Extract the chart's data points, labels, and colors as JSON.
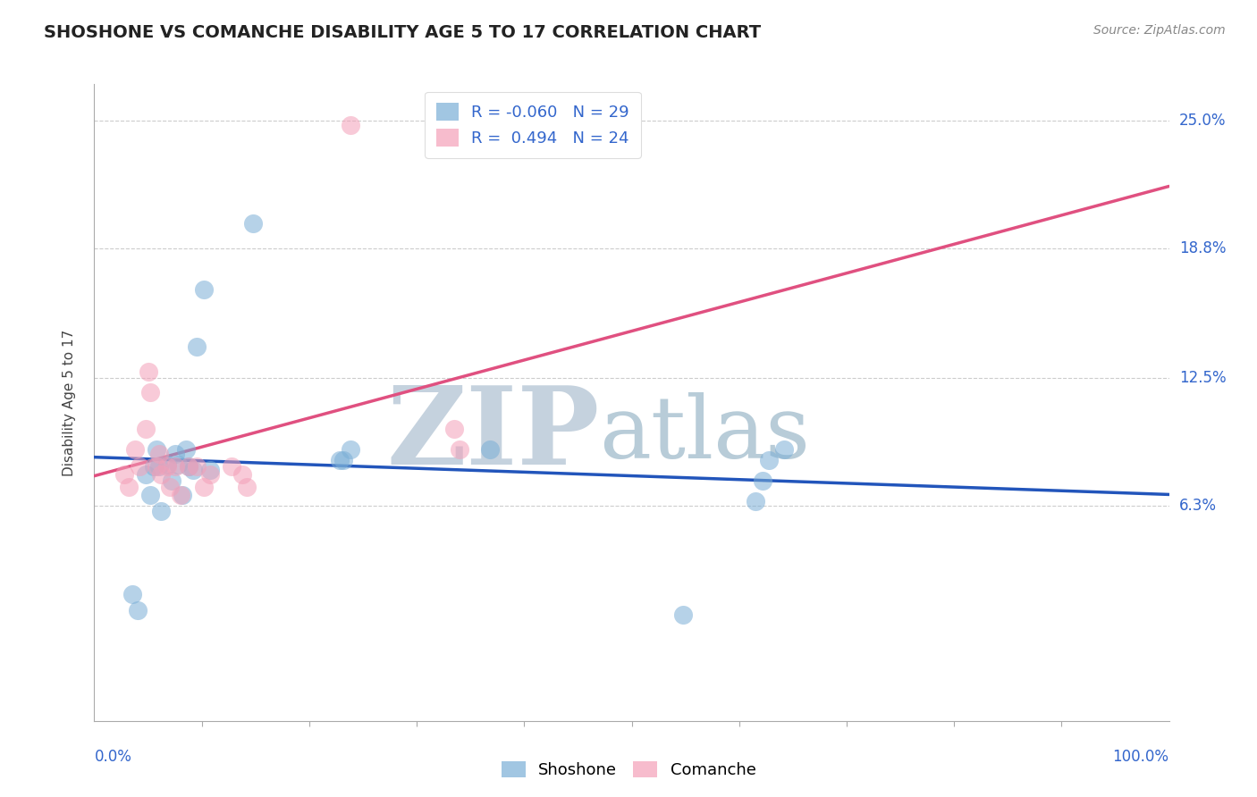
{
  "title": "SHOSHONE VS COMANCHE DISABILITY AGE 5 TO 17 CORRELATION CHART",
  "source": "Source: ZipAtlas.com",
  "ylabel": "Disability Age 5 to 17",
  "xmin": 0.0,
  "xmax": 1.0,
  "ymin": -0.042,
  "ymax": 0.268,
  "shoshone_R": -0.06,
  "shoshone_N": 29,
  "comanche_R": 0.494,
  "comanche_N": 24,
  "shoshone_color": "#7aaed6",
  "comanche_color": "#f4a0b8",
  "shoshone_line_color": "#2255bb",
  "comanche_line_color": "#e05080",
  "watermark_zip": "ZIP",
  "watermark_atlas": "atlas",
  "watermark_color_zip": "#c8d4e0",
  "watermark_color_atlas": "#b0c8dc",
  "ytick_vals": [
    0.063,
    0.125,
    0.188,
    0.25
  ],
  "ytick_labels": [
    "6.3%",
    "12.5%",
    "18.8%",
    "25.0%"
  ],
  "shoshone_x": [
    0.035,
    0.04,
    0.048,
    0.052,
    0.055,
    0.058,
    0.06,
    0.062,
    0.068,
    0.072,
    0.075,
    0.078,
    0.082,
    0.085,
    0.088,
    0.092,
    0.095,
    0.102,
    0.108,
    0.148,
    0.228,
    0.232,
    0.238,
    0.368,
    0.548,
    0.615,
    0.622,
    0.628,
    0.642
  ],
  "shoshone_y": [
    0.02,
    0.012,
    0.078,
    0.068,
    0.082,
    0.09,
    0.082,
    0.06,
    0.083,
    0.075,
    0.088,
    0.083,
    0.068,
    0.09,
    0.082,
    0.08,
    0.14,
    0.168,
    0.08,
    0.2,
    0.085,
    0.085,
    0.09,
    0.09,
    0.01,
    0.065,
    0.075,
    0.085,
    0.09
  ],
  "comanche_x": [
    0.028,
    0.032,
    0.038,
    0.042,
    0.048,
    0.05,
    0.052,
    0.058,
    0.06,
    0.062,
    0.068,
    0.07,
    0.075,
    0.08,
    0.088,
    0.095,
    0.102,
    0.108,
    0.128,
    0.138,
    0.142,
    0.238,
    0.335,
    0.34
  ],
  "comanche_y": [
    0.078,
    0.072,
    0.09,
    0.082,
    0.1,
    0.128,
    0.118,
    0.082,
    0.088,
    0.078,
    0.082,
    0.072,
    0.082,
    0.068,
    0.082,
    0.082,
    0.072,
    0.078,
    0.082,
    0.078,
    0.072,
    0.248,
    0.1,
    0.09
  ]
}
